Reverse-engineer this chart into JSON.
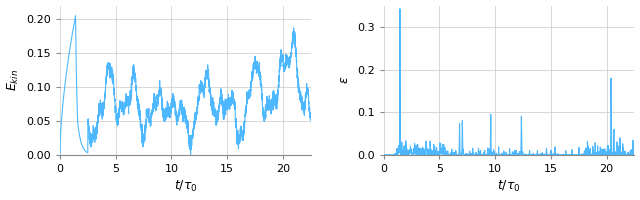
{
  "line_color": "#4db8ff",
  "background_color": "#ffffff",
  "grid_color": "#c8c8c8",
  "figsize": [
    6.4,
    2.0
  ],
  "dpi": 100,
  "left_ylabel": "$E_{kin}$",
  "right_ylabel": "$\\varepsilon$",
  "xlabel": "$t/\\tau_0$",
  "left_xlim": [
    0,
    22.5
  ],
  "right_xlim": [
    0,
    22.5
  ],
  "left_ylim": [
    0,
    0.22
  ],
  "right_ylim": [
    0,
    0.35
  ],
  "left_yticks": [
    0.0,
    0.05,
    0.1,
    0.15,
    0.2
  ],
  "right_yticks": [
    0.0,
    0.1,
    0.2,
    0.3
  ],
  "left_xticks": [
    0,
    5,
    10,
    15,
    20
  ],
  "right_xticks": [
    0,
    5,
    10,
    15,
    20
  ],
  "spine_color": "#888888",
  "tick_color": "#888888",
  "label_fontsize": 9,
  "tick_fontsize": 8,
  "linewidth": 0.8,
  "seed": 12345
}
